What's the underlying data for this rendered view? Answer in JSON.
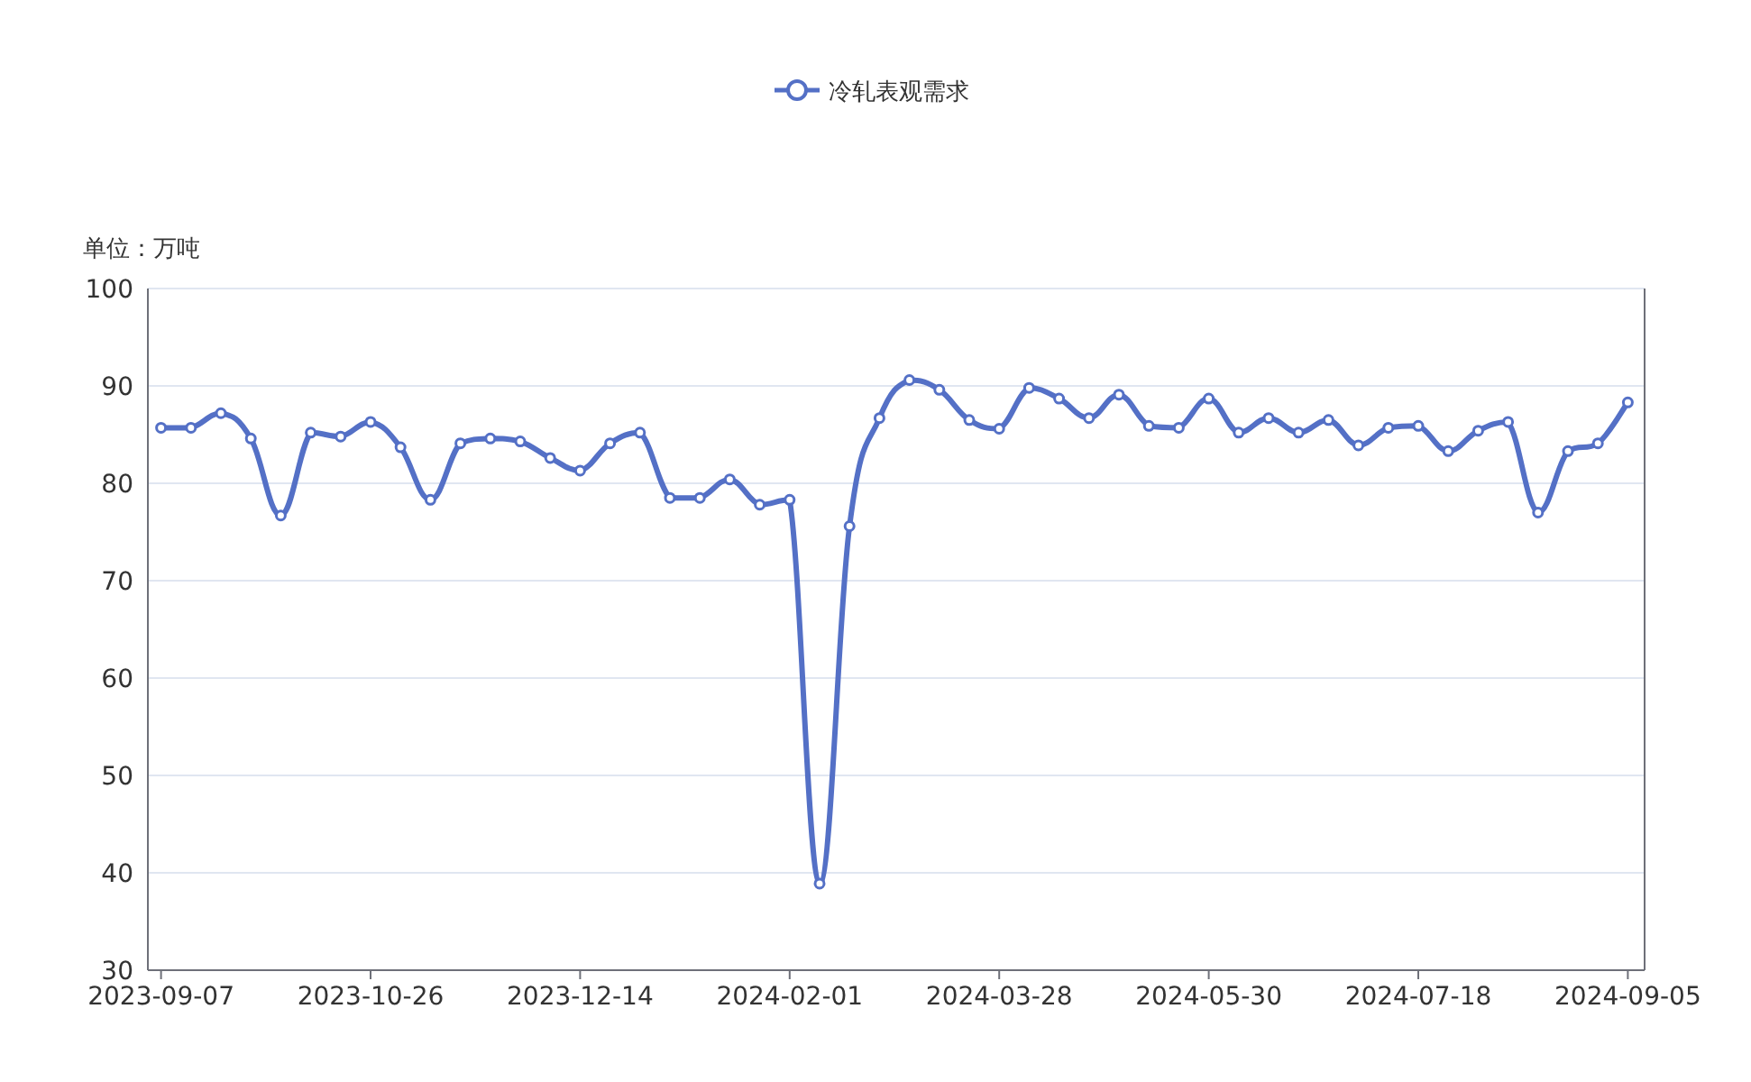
{
  "chart_data": {
    "type": "line",
    "ylabel": "单位：万吨",
    "categories": [
      "2023-09-07",
      null,
      null,
      null,
      null,
      null,
      null,
      "2023-10-26",
      null,
      null,
      null,
      null,
      null,
      null,
      "2023-12-14",
      null,
      null,
      null,
      null,
      null,
      null,
      "2024-02-01",
      null,
      null,
      null,
      null,
      null,
      null,
      "2024-03-28",
      null,
      null,
      null,
      null,
      null,
      null,
      "2024-05-30",
      null,
      null,
      null,
      null,
      null,
      null,
      "2024-07-18",
      null,
      null,
      null,
      null,
      null,
      null,
      "2024-09-05"
    ],
    "series": [
      {
        "name": "冷轧表观需求",
        "color": "#5470c6",
        "values": [
          85.7,
          85.7,
          87.2,
          84.6,
          76.7,
          85.2,
          84.8,
          86.3,
          83.7,
          78.3,
          84.1,
          84.6,
          84.3,
          82.6,
          81.3,
          84.1,
          85.2,
          78.5,
          78.5,
          80.4,
          77.8,
          78.3,
          38.9,
          75.6,
          86.7,
          90.6,
          89.6,
          86.5,
          85.6,
          89.8,
          88.7,
          86.7,
          89.1,
          85.9,
          85.7,
          88.7,
          85.2,
          86.7,
          85.2,
          86.5,
          83.9,
          85.7,
          85.9,
          83.3,
          85.4,
          86.3,
          77.0,
          83.3,
          84.1,
          88.3
        ]
      }
    ],
    "ylim": [
      30,
      100
    ],
    "yticks": [
      30,
      40,
      50,
      60,
      70,
      80,
      90,
      100
    ],
    "grid": "y",
    "legend": "top",
    "marker": "circle",
    "line_style": "solid"
  }
}
